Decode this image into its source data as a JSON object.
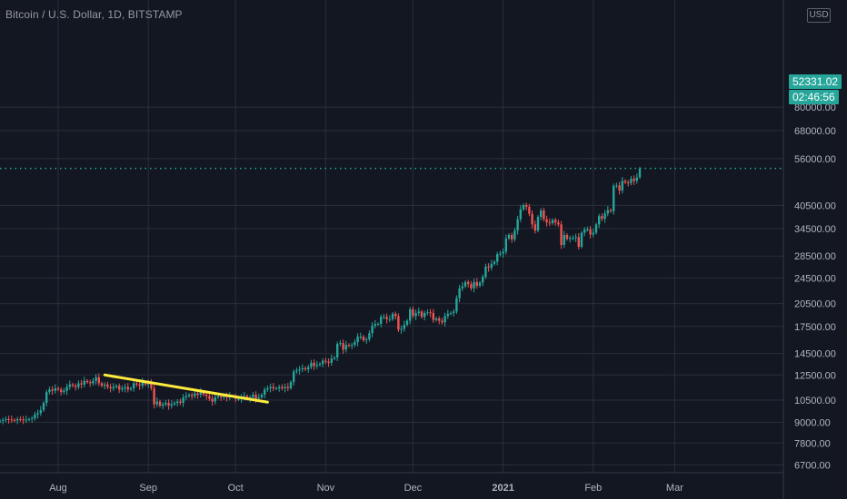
{
  "header": {
    "title": "Bitcoin / U.S. Dollar, 1D, BITSTAMP",
    "currency": "USD"
  },
  "price_tags": {
    "last_price": "52331.02",
    "countdown": "02:46:56"
  },
  "colors": {
    "up": "#26a69a",
    "down": "#ef5350",
    "grid": "#2a2e39",
    "text": "#b2b5be",
    "trendline": "#ffeb3b",
    "background": "#131722"
  },
  "chart_data": {
    "type": "candlestick",
    "scale": "log",
    "title": "Bitcoin / U.S. Dollar, 1D, BITSTAMP",
    "y_ticks": [
      6700,
      7800,
      9000,
      10500,
      12500,
      14500,
      17500,
      20500,
      24500,
      28500,
      34500,
      40500,
      56000,
      68000,
      80000
    ],
    "x_ticks": [
      "Aug",
      "Sep",
      "Oct",
      "Nov",
      "Dec",
      "2021",
      "Feb",
      "Mar"
    ],
    "last_price": 52331.02,
    "grid": true,
    "trendline": {
      "from": {
        "date": "2020-08-17",
        "price": 12500
      },
      "to": {
        "date": "2020-10-12",
        "price": 10350
      }
    },
    "closes_by_month": [
      {
        "month": "2020-07",
        "closes": [
          9100,
          9150,
          9200,
          9180,
          9150,
          9120,
          9200,
          9180,
          9150,
          9170,
          9200,
          9250,
          9500,
          9600,
          9800,
          10300,
          11100,
          11300,
          11200,
          11400
        ]
      },
      {
        "month": "2020-08",
        "closes": [
          11300,
          11100,
          11200,
          11500,
          11700,
          11600,
          11500,
          11800,
          11700,
          12000,
          11900,
          11800,
          12000,
          12300,
          11800,
          11600,
          11700,
          11500,
          11400,
          11500,
          11600,
          11300,
          11400,
          11500,
          11300,
          11400,
          11800,
          11700,
          11600,
          11900,
          11700
        ]
      },
      {
        "month": "2020-09",
        "closes": [
          11900,
          11400,
          10200,
          10400,
          10100,
          10200,
          10300,
          10100,
          10200,
          10300,
          10400,
          10300,
          10700,
          10800,
          10900,
          10800,
          11000,
          10900,
          11100,
          10900,
          10800,
          10600,
          10400,
          10700,
          10800,
          10700,
          10800,
          10700,
          10800,
          10800
        ]
      },
      {
        "month": "2020-10",
        "closes": [
          10600,
          10600,
          10700,
          10800,
          10600,
          10700,
          10900,
          10600,
          10700,
          10900,
          11300,
          11400,
          11500,
          11400,
          11400,
          11500,
          11400,
          11500,
          11400,
          11900,
          12800,
          12900,
          13000,
          13100,
          13000,
          13200,
          13600,
          13300,
          13400,
          13500,
          13800
        ]
      },
      {
        "month": "2020-11",
        "closes": [
          13700,
          13600,
          14000,
          14100,
          15500,
          15600,
          14900,
          15400,
          15300,
          15400,
          15700,
          16300,
          16300,
          15900,
          16000,
          16700,
          17600,
          17800,
          17800,
          18700,
          18700,
          18400,
          18400,
          19100,
          18800,
          17100,
          17200,
          17700,
          18200,
          19700
        ]
      },
      {
        "month": "2020-12",
        "closes": [
          18800,
          19200,
          19400,
          18700,
          19200,
          19300,
          19200,
          18300,
          18500,
          18200,
          18000,
          18800,
          19100,
          19200,
          19400,
          21300,
          22800,
          23100,
          23800,
          23500,
          22800,
          23800,
          23200,
          23700,
          24700,
          26500,
          26300,
          27000,
          27400,
          28900,
          29000
        ]
      },
      {
        "month": "2021-01",
        "closes": [
          29400,
          32200,
          33000,
          32000,
          34000,
          36800,
          39400,
          40600,
          40100,
          38200,
          35500,
          34000,
          37400,
          39100,
          36800,
          36000,
          35800,
          36600,
          36000,
          35500,
          30800,
          33000,
          32100,
          32300,
          32300,
          32500,
          30400,
          33500,
          34300,
          34300,
          33100
        ]
      },
      {
        "month": "2021-02",
        "closes": [
          33500,
          35500,
          37600,
          36900,
          38300,
          39200,
          38900,
          46400,
          46500,
          44900,
          48000,
          47500,
          47300,
          48700,
          48000,
          49200,
          52300
        ]
      }
    ]
  }
}
